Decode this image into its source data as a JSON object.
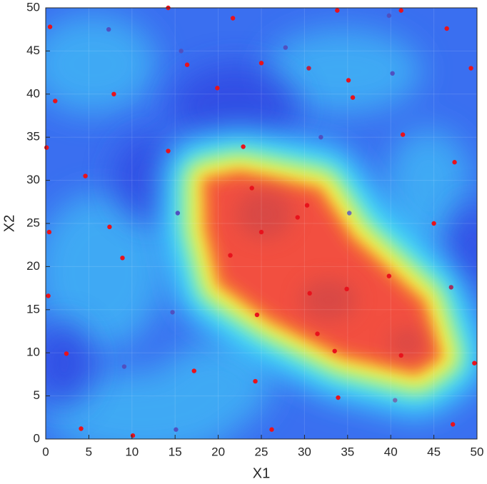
{
  "chart_data": {
    "type": "scatter",
    "xlabel": "X1",
    "ylabel": "X2",
    "xlim": [
      0,
      50
    ],
    "ylim": [
      0,
      50
    ],
    "xticks": [
      0,
      5,
      10,
      15,
      20,
      25,
      30,
      35,
      40,
      45,
      50
    ],
    "yticks": [
      0,
      5,
      10,
      15,
      20,
      25,
      30,
      35,
      40,
      45,
      50
    ],
    "grid": true,
    "x": [
      14.2,
      21.7,
      33.8,
      39.8,
      41.2,
      0.5,
      7.3,
      46.5,
      27.8,
      15.7,
      16.4,
      25.0,
      30.5,
      49.3,
      40.2,
      35.1,
      19.9,
      7.9,
      35.6,
      1.1,
      41.4,
      31.9,
      0.1,
      22.9,
      14.2,
      47.4,
      4.6,
      23.9,
      30.3,
      29.2,
      15.3,
      35.2,
      7.4,
      45.0,
      0.4,
      25.0,
      21.4,
      8.9,
      39.8,
      47.0,
      34.9,
      30.6,
      0.3,
      14.7,
      24.5,
      31.5,
      33.5,
      2.4,
      41.2,
      9.1,
      49.7,
      17.2,
      24.3,
      33.9,
      40.5,
      4.1,
      15.1,
      26.2,
      10.1,
      47.2
    ],
    "y": [
      50.0,
      48.8,
      49.7,
      49.1,
      49.7,
      47.8,
      47.5,
      47.6,
      45.4,
      45.0,
      43.4,
      43.6,
      43.0,
      43.0,
      42.4,
      41.6,
      40.7,
      40.0,
      39.6,
      39.2,
      35.3,
      35.0,
      33.8,
      33.9,
      33.4,
      32.1,
      30.5,
      29.1,
      27.1,
      25.7,
      26.2,
      26.2,
      24.6,
      25.0,
      24.0,
      24.0,
      21.3,
      21.0,
      18.9,
      17.6,
      17.4,
      16.9,
      16.6,
      14.7,
      14.4,
      12.2,
      10.2,
      9.9,
      9.7,
      8.4,
      8.8,
      7.9,
      6.7,
      4.8,
      4.5,
      1.2,
      1.1,
      1.1,
      0.4,
      1.7
    ],
    "colors": [
      "#e8121c",
      "#e8121c",
      "#e8121c",
      "#5050c0",
      "#e8121c",
      "#e8121c",
      "#5050c0",
      "#e8121c",
      "#5050c0",
      "#5050c0",
      "#e8121c",
      "#e8121c",
      "#c02040",
      "#e8121c",
      "#5050c0",
      "#e8121c",
      "#e8121c",
      "#e8121c",
      "#e8121c",
      "#e8121c",
      "#e8121c",
      "#5050c0",
      "#e8121c",
      "#e8121c",
      "#e8121c",
      "#e8121c",
      "#e8121c",
      "#e8121c",
      "#e8121c",
      "#e8121c",
      "#5050c0",
      "#7070b0",
      "#e8121c",
      "#e8121c",
      "#e8121c",
      "#e8121c",
      "#e8121c",
      "#e8121c",
      "#e8121c",
      "#a03060",
      "#e8121c",
      "#e8121c",
      "#e8121c",
      "#5050c0",
      "#e8121c",
      "#e8121c",
      "#e8121c",
      "#e8121c",
      "#e8121c",
      "#5050c0",
      "#e8121c",
      "#e8121c",
      "#e8121c",
      "#e8121c",
      "#7070b0",
      "#e8121c",
      "#5050c0",
      "#e8121c",
      "#e8121c",
      "#e8121c"
    ]
  }
}
